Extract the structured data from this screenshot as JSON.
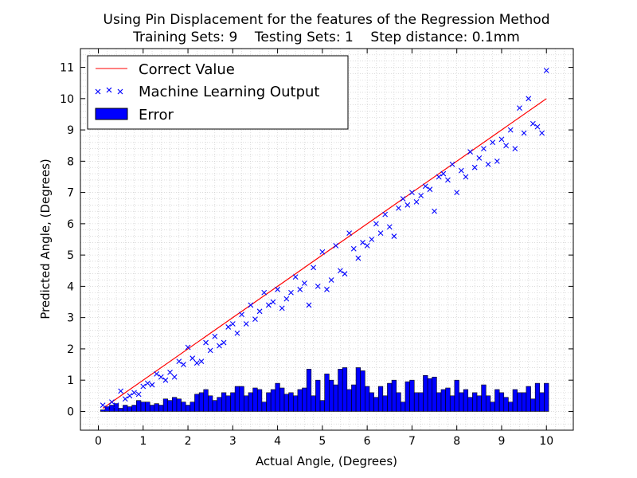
{
  "chart_data": {
    "type": "line+scatter+bar",
    "title": "Using Pin Displacement for the features of the Regression Method",
    "subtitle": "Training Sets: 9    Testing Sets: 1    Step distance: 0.1mm",
    "xlabel": "Actual Angle, (Degrees)",
    "ylabel": "Predicted Angle, (Degrees)",
    "xlim": [
      -0.4,
      10.6
    ],
    "ylim": [
      -0.6,
      11.6
    ],
    "xticks": [
      0,
      1,
      2,
      3,
      4,
      5,
      6,
      7,
      8,
      9,
      10
    ],
    "yticks": [
      0,
      1,
      2,
      3,
      4,
      5,
      6,
      7,
      8,
      9,
      10,
      11
    ],
    "grid": "dotted",
    "legend_position": "top-left",
    "legend": [
      "Correct Value",
      "Machine Learning Output",
      "Error"
    ],
    "colors": {
      "correct_line": "#ff0000",
      "ml_output": "#0000ff",
      "error_bar": "#0000ff",
      "error_edge": "#000000"
    },
    "series": [
      {
        "name": "Correct Value",
        "kind": "line",
        "x": [
          0.1,
          10.0
        ],
        "y": [
          0.1,
          10.0
        ]
      },
      {
        "name": "Machine Learning Output",
        "kind": "scatter",
        "x": [
          0.1,
          0.2,
          0.3,
          0.4,
          0.5,
          0.6,
          0.7,
          0.8,
          0.9,
          1.0,
          1.1,
          1.2,
          1.3,
          1.4,
          1.5,
          1.6,
          1.7,
          1.8,
          1.9,
          2.0,
          2.1,
          2.2,
          2.3,
          2.4,
          2.5,
          2.6,
          2.7,
          2.8,
          2.9,
          3.0,
          3.1,
          3.2,
          3.3,
          3.4,
          3.5,
          3.6,
          3.7,
          3.8,
          3.9,
          4.0,
          4.1,
          4.2,
          4.3,
          4.4,
          4.5,
          4.6,
          4.7,
          4.8,
          4.9,
          5.0,
          5.1,
          5.2,
          5.3,
          5.4,
          5.5,
          5.6,
          5.7,
          5.8,
          5.9,
          6.0,
          6.1,
          6.2,
          6.3,
          6.4,
          6.5,
          6.6,
          6.7,
          6.8,
          6.9,
          7.0,
          7.1,
          7.2,
          7.3,
          7.4,
          7.5,
          7.6,
          7.7,
          7.8,
          7.9,
          8.0,
          8.1,
          8.2,
          8.3,
          8.4,
          8.5,
          8.6,
          8.7,
          8.8,
          8.9,
          9.0,
          9.1,
          9.2,
          9.3,
          9.4,
          9.5,
          9.6,
          9.7,
          9.8,
          9.9,
          10.0
        ],
        "y": [
          0.2,
          0.1,
          0.3,
          0.2,
          0.65,
          0.4,
          0.5,
          0.6,
          0.55,
          0.8,
          0.9,
          0.85,
          1.2,
          1.1,
          1.0,
          1.25,
          1.1,
          1.6,
          1.5,
          2.05,
          1.7,
          1.55,
          1.6,
          2.2,
          1.95,
          2.4,
          2.1,
          2.2,
          2.7,
          2.8,
          2.5,
          3.1,
          2.8,
          3.4,
          2.95,
          3.2,
          3.8,
          3.4,
          3.5,
          3.9,
          3.3,
          3.6,
          3.8,
          4.3,
          3.9,
          4.1,
          3.4,
          4.6,
          4.0,
          5.1,
          3.9,
          4.2,
          5.3,
          4.5,
          4.4,
          5.7,
          5.2,
          4.9,
          5.4,
          5.3,
          5.5,
          6.0,
          5.7,
          6.3,
          5.9,
          5.6,
          6.5,
          6.8,
          6.6,
          7.0,
          6.7,
          6.9,
          7.2,
          7.1,
          6.4,
          7.5,
          7.6,
          7.4,
          7.9,
          7.0,
          7.7,
          7.5,
          8.3,
          7.8,
          8.1,
          8.4,
          7.9,
          8.6,
          8.0,
          8.7,
          8.5,
          9.0,
          8.4,
          9.7,
          8.9,
          10.0,
          9.2,
          9.1,
          8.9,
          10.9
        ]
      },
      {
        "name": "Error",
        "kind": "bar",
        "bar_width": 0.1,
        "x": [
          0.1,
          0.2,
          0.3,
          0.4,
          0.5,
          0.6,
          0.7,
          0.8,
          0.9,
          1.0,
          1.1,
          1.2,
          1.3,
          1.4,
          1.5,
          1.6,
          1.7,
          1.8,
          1.9,
          2.0,
          2.1,
          2.2,
          2.3,
          2.4,
          2.5,
          2.6,
          2.7,
          2.8,
          2.9,
          3.0,
          3.1,
          3.2,
          3.3,
          3.4,
          3.5,
          3.6,
          3.7,
          3.8,
          3.9,
          4.0,
          4.1,
          4.2,
          4.3,
          4.4,
          4.5,
          4.6,
          4.7,
          4.8,
          4.9,
          5.0,
          5.1,
          5.2,
          5.3,
          5.4,
          5.5,
          5.6,
          5.7,
          5.8,
          5.9,
          6.0,
          6.1,
          6.2,
          6.3,
          6.4,
          6.5,
          6.6,
          6.7,
          6.8,
          6.9,
          7.0,
          7.1,
          7.2,
          7.3,
          7.4,
          7.5,
          7.6,
          7.7,
          7.8,
          7.9,
          8.0,
          8.1,
          8.2,
          8.3,
          8.4,
          8.5,
          8.6,
          8.7,
          8.8,
          8.9,
          9.0,
          9.1,
          9.2,
          9.3,
          9.4,
          9.5,
          9.6,
          9.7,
          9.8,
          9.9,
          10.0
        ],
        "values": [
          0.05,
          0.15,
          0.2,
          0.25,
          0.1,
          0.2,
          0.15,
          0.2,
          0.35,
          0.3,
          0.3,
          0.2,
          0.25,
          0.2,
          0.4,
          0.35,
          0.45,
          0.4,
          0.3,
          0.2,
          0.3,
          0.55,
          0.6,
          0.7,
          0.5,
          0.35,
          0.45,
          0.6,
          0.5,
          0.6,
          0.8,
          0.8,
          0.5,
          0.6,
          0.75,
          0.7,
          0.3,
          0.6,
          0.7,
          0.9,
          0.75,
          0.55,
          0.6,
          0.5,
          0.7,
          0.75,
          1.35,
          0.5,
          1.0,
          0.35,
          1.2,
          1.0,
          0.85,
          1.35,
          1.4,
          0.7,
          0.85,
          1.4,
          1.3,
          0.8,
          0.6,
          0.45,
          0.8,
          0.5,
          0.9,
          1.0,
          0.6,
          0.3,
          0.95,
          1.0,
          0.6,
          0.6,
          1.15,
          1.05,
          1.1,
          0.6,
          0.7,
          0.75,
          0.5,
          1.0,
          0.6,
          0.7,
          0.45,
          0.6,
          0.5,
          0.85,
          0.5,
          0.3,
          0.7,
          0.6,
          0.45,
          0.3,
          0.7,
          0.6,
          0.6,
          0.8,
          0.4,
          0.9,
          0.6,
          0.9
        ]
      }
    ]
  }
}
